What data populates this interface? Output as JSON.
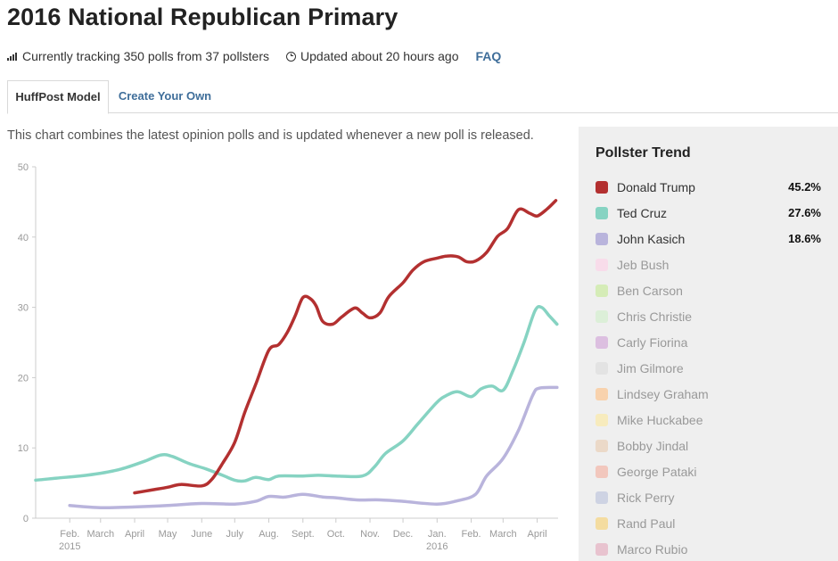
{
  "header": {
    "title": "2016 National Republican Primary",
    "tracking_text": "Currently tracking 350 polls from 37 pollsters",
    "updated_text": "Updated about 20 hours ago",
    "faq_label": "FAQ"
  },
  "tabs": [
    {
      "label": "HuffPost Model",
      "active": true
    },
    {
      "label": "Create Your Own",
      "active": false
    }
  ],
  "description": "This chart combines the latest opinion polls and is updated whenever a new poll is released.",
  "legend": {
    "title": "Pollster Trend",
    "items": [
      {
        "name": "Donald Trump",
        "value": "45.2%",
        "color": "#b33030",
        "active": true
      },
      {
        "name": "Ted Cruz",
        "value": "27.6%",
        "color": "#86d3c2",
        "active": true
      },
      {
        "name": "John Kasich",
        "value": "18.6%",
        "color": "#b9b4dc",
        "active": true
      },
      {
        "name": "Jeb Bush",
        "value": "",
        "color": "#f8dcea",
        "active": false
      },
      {
        "name": "Ben Carson",
        "value": "",
        "color": "#d5ecb7",
        "active": false
      },
      {
        "name": "Chris Christie",
        "value": "",
        "color": "#dcefd8",
        "active": false
      },
      {
        "name": "Carly Fiorina",
        "value": "",
        "color": "#dcbfe0",
        "active": false
      },
      {
        "name": "Jim Gilmore",
        "value": "",
        "color": "#e3e3e3",
        "active": false
      },
      {
        "name": "Lindsey Graham",
        "value": "",
        "color": "#f8d2ad",
        "active": false
      },
      {
        "name": "Mike Huckabee",
        "value": "",
        "color": "#f7ebbd",
        "active": false
      },
      {
        "name": "Bobby Jindal",
        "value": "",
        "color": "#ebd9c8",
        "active": false
      },
      {
        "name": "George Pataki",
        "value": "",
        "color": "#f2c7bd",
        "active": false
      },
      {
        "name": "Rick Perry",
        "value": "",
        "color": "#ced3e3",
        "active": false
      },
      {
        "name": "Rand Paul",
        "value": "",
        "color": "#f4dca0",
        "active": false
      },
      {
        "name": "Marco Rubio",
        "value": "",
        "color": "#e8c3cf",
        "active": false
      }
    ]
  },
  "chart_data": {
    "type": "line",
    "title": "",
    "xlabel": "",
    "ylabel": "",
    "ylim": [
      0,
      50
    ],
    "xlim": [
      "2015-01-01",
      "2016-04-20"
    ],
    "y_ticks": [
      0,
      10,
      20,
      30,
      40,
      50
    ],
    "x_ticks": [
      {
        "date": "2015-02-01",
        "label": "Feb.",
        "sublabel": "2015"
      },
      {
        "date": "2015-03-01",
        "label": "March",
        "sublabel": ""
      },
      {
        "date": "2015-04-01",
        "label": "April",
        "sublabel": ""
      },
      {
        "date": "2015-05-01",
        "label": "May",
        "sublabel": ""
      },
      {
        "date": "2015-06-01",
        "label": "June",
        "sublabel": ""
      },
      {
        "date": "2015-07-01",
        "label": "July",
        "sublabel": ""
      },
      {
        "date": "2015-08-01",
        "label": "Aug.",
        "sublabel": ""
      },
      {
        "date": "2015-09-01",
        "label": "Sept.",
        "sublabel": ""
      },
      {
        "date": "2015-10-01",
        "label": "Oct.",
        "sublabel": ""
      },
      {
        "date": "2015-11-01",
        "label": "Nov.",
        "sublabel": ""
      },
      {
        "date": "2015-12-01",
        "label": "Dec.",
        "sublabel": ""
      },
      {
        "date": "2016-01-01",
        "label": "Jan.",
        "sublabel": "2016"
      },
      {
        "date": "2016-02-01",
        "label": "Feb.",
        "sublabel": ""
      },
      {
        "date": "2016-03-01",
        "label": "March",
        "sublabel": ""
      },
      {
        "date": "2016-04-01",
        "label": "April",
        "sublabel": ""
      }
    ],
    "grid": false,
    "legend_placement": "right",
    "series": [
      {
        "name": "Donald Trump",
        "color": "#b33030",
        "points": [
          [
            "2015-04-01",
            3.6
          ],
          [
            "2015-04-16",
            4.0
          ],
          [
            "2015-05-01",
            4.4
          ],
          [
            "2015-05-13",
            4.8
          ],
          [
            "2015-06-01",
            4.6
          ],
          [
            "2015-06-10",
            5.5
          ],
          [
            "2015-06-20",
            7.8
          ],
          [
            "2015-07-01",
            10.8
          ],
          [
            "2015-07-10",
            15.0
          ],
          [
            "2015-07-20",
            19.0
          ],
          [
            "2015-08-01",
            23.9
          ],
          [
            "2015-08-10",
            24.7
          ],
          [
            "2015-08-18",
            26.5
          ],
          [
            "2015-08-25",
            28.8
          ],
          [
            "2015-09-01",
            31.4
          ],
          [
            "2015-09-08",
            31.2
          ],
          [
            "2015-09-13",
            30.2
          ],
          [
            "2015-09-19",
            28.0
          ],
          [
            "2015-09-28",
            27.6
          ],
          [
            "2015-10-06",
            28.6
          ],
          [
            "2015-10-18",
            29.9
          ],
          [
            "2015-10-25",
            29.2
          ],
          [
            "2015-11-01",
            28.5
          ],
          [
            "2015-11-10",
            29.2
          ],
          [
            "2015-11-18",
            31.5
          ],
          [
            "2015-12-01",
            33.5
          ],
          [
            "2015-12-10",
            35.3
          ],
          [
            "2015-12-20",
            36.5
          ],
          [
            "2016-01-01",
            37.0
          ],
          [
            "2016-01-10",
            37.3
          ],
          [
            "2016-01-20",
            37.2
          ],
          [
            "2016-01-28",
            36.5
          ],
          [
            "2016-02-05",
            36.6
          ],
          [
            "2016-02-15",
            37.8
          ],
          [
            "2016-02-25",
            40.1
          ],
          [
            "2016-03-05",
            41.2
          ],
          [
            "2016-03-15",
            43.9
          ],
          [
            "2016-03-25",
            43.4
          ],
          [
            "2016-04-01",
            43.0
          ],
          [
            "2016-04-10",
            44.0
          ],
          [
            "2016-04-18",
            45.2
          ]
        ]
      },
      {
        "name": "Ted Cruz",
        "color": "#86d3c2",
        "points": [
          [
            "2015-01-01",
            5.4
          ],
          [
            "2015-01-20",
            5.7
          ],
          [
            "2015-02-10",
            6.0
          ],
          [
            "2015-03-01",
            6.4
          ],
          [
            "2015-03-20",
            7.0
          ],
          [
            "2015-04-10",
            8.1
          ],
          [
            "2015-04-25",
            9.0
          ],
          [
            "2015-05-05",
            8.8
          ],
          [
            "2015-05-20",
            7.8
          ],
          [
            "2015-06-05",
            7.0
          ],
          [
            "2015-06-20",
            6.1
          ],
          [
            "2015-07-01",
            5.4
          ],
          [
            "2015-07-10",
            5.3
          ],
          [
            "2015-07-20",
            5.8
          ],
          [
            "2015-08-01",
            5.5
          ],
          [
            "2015-08-10",
            6.0
          ],
          [
            "2015-09-01",
            6.0
          ],
          [
            "2015-09-15",
            6.1
          ],
          [
            "2015-10-01",
            6.0
          ],
          [
            "2015-10-25",
            6.0
          ],
          [
            "2015-11-05",
            7.3
          ],
          [
            "2015-11-15",
            9.2
          ],
          [
            "2015-12-01",
            11.0
          ],
          [
            "2015-12-15",
            13.5
          ],
          [
            "2016-01-01",
            16.5
          ],
          [
            "2016-01-10",
            17.5
          ],
          [
            "2016-01-20",
            18.0
          ],
          [
            "2016-02-01",
            17.3
          ],
          [
            "2016-02-10",
            18.4
          ],
          [
            "2016-02-20",
            18.8
          ],
          [
            "2016-03-01",
            18.2
          ],
          [
            "2016-03-10",
            21.0
          ],
          [
            "2016-03-20",
            25.0
          ],
          [
            "2016-03-30",
            29.5
          ],
          [
            "2016-04-05",
            30.0
          ],
          [
            "2016-04-12",
            28.8
          ],
          [
            "2016-04-19",
            27.6
          ]
        ]
      },
      {
        "name": "John Kasich",
        "color": "#b9b4dc",
        "points": [
          [
            "2015-02-01",
            1.8
          ],
          [
            "2015-03-01",
            1.5
          ],
          [
            "2015-04-01",
            1.6
          ],
          [
            "2015-05-01",
            1.8
          ],
          [
            "2015-06-01",
            2.1
          ],
          [
            "2015-07-01",
            2.0
          ],
          [
            "2015-07-20",
            2.4
          ],
          [
            "2015-08-01",
            3.1
          ],
          [
            "2015-08-15",
            3.0
          ],
          [
            "2015-09-01",
            3.4
          ],
          [
            "2015-09-20",
            3.0
          ],
          [
            "2015-10-01",
            2.9
          ],
          [
            "2015-10-20",
            2.6
          ],
          [
            "2015-11-10",
            2.6
          ],
          [
            "2015-12-01",
            2.4
          ],
          [
            "2016-01-01",
            2.0
          ],
          [
            "2016-01-20",
            2.5
          ],
          [
            "2016-02-05",
            3.4
          ],
          [
            "2016-02-15",
            6.0
          ],
          [
            "2016-03-01",
            8.5
          ],
          [
            "2016-03-15",
            12.5
          ],
          [
            "2016-03-28",
            17.5
          ],
          [
            "2016-04-03",
            18.5
          ],
          [
            "2016-04-19",
            18.6
          ]
        ]
      }
    ]
  }
}
